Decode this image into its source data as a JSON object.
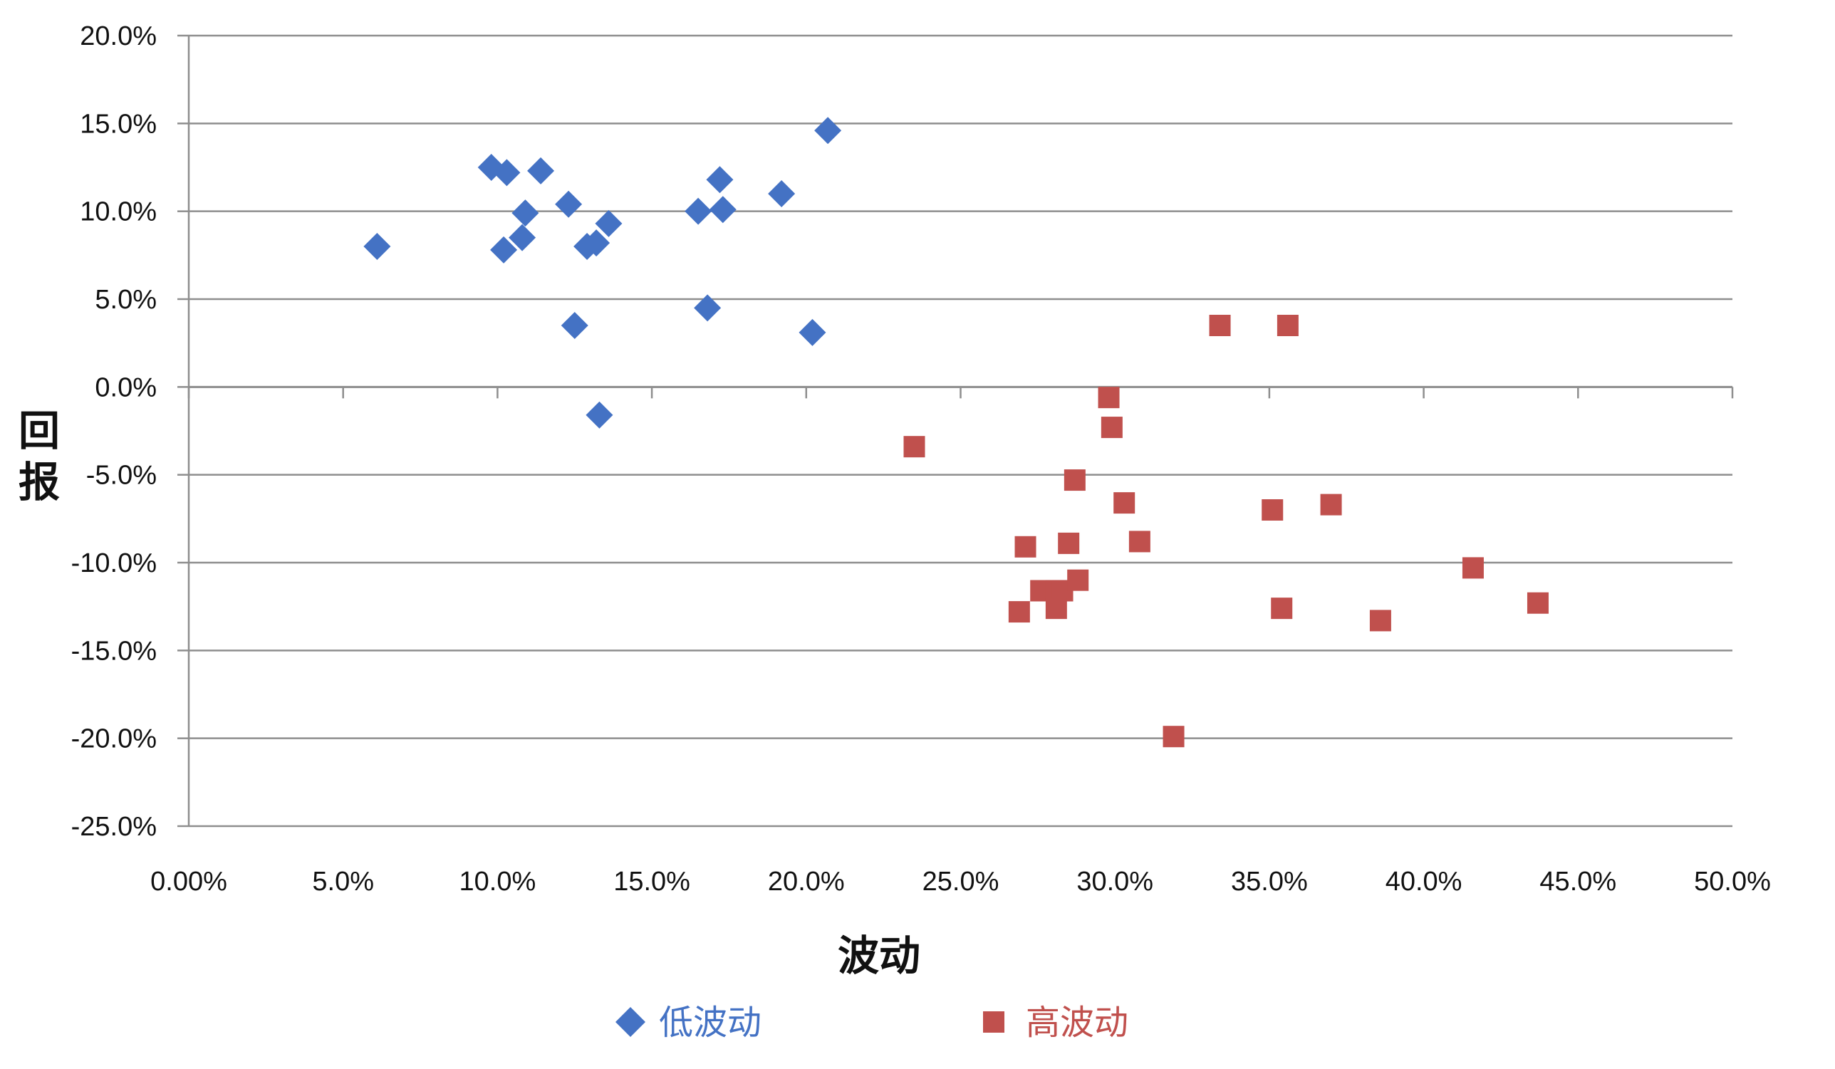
{
  "chart_data": {
    "type": "scatter",
    "title": "",
    "xlabel": "波动",
    "ylabel": "回报",
    "xlim": [
      0.0,
      50.0
    ],
    "ylim": [
      -25.0,
      20.0
    ],
    "x_ticks": [
      0,
      5,
      10,
      15,
      20,
      25,
      30,
      35,
      40,
      45,
      50
    ],
    "x_tick_labels": [
      "0.00%",
      "5.0%",
      "10.0%",
      "15.0%",
      "20.0%",
      "25.0%",
      "30.0%",
      "35.0%",
      "40.0%",
      "45.0%",
      "50.0%"
    ],
    "y_ticks": [
      20,
      15,
      10,
      5,
      0,
      -5,
      -10,
      -15,
      -20,
      -25
    ],
    "y_tick_labels": [
      "20.0%",
      "15.0%",
      "10.0%",
      "5.0%",
      "0.0%",
      "-5.0%",
      "-10.0%",
      "-15.0%",
      "-20.0%",
      "-25.0%"
    ],
    "grid": "horizontal",
    "legend_position": "bottom",
    "series": [
      {
        "name": "低波动",
        "marker": "diamond",
        "color": "#4472C4",
        "points": [
          [
            6.1,
            8.0
          ],
          [
            9.8,
            12.5
          ],
          [
            10.3,
            12.2
          ],
          [
            11.4,
            12.3
          ],
          [
            10.9,
            9.9
          ],
          [
            10.2,
            7.8
          ],
          [
            10.8,
            8.5
          ],
          [
            12.3,
            10.4
          ],
          [
            12.9,
            8.0
          ],
          [
            13.2,
            8.2
          ],
          [
            13.6,
            9.3
          ],
          [
            12.5,
            3.5
          ],
          [
            13.3,
            -1.6
          ],
          [
            16.5,
            10.0
          ],
          [
            17.2,
            11.8
          ],
          [
            17.3,
            10.1
          ],
          [
            16.8,
            4.5
          ],
          [
            19.2,
            11.0
          ],
          [
            20.2,
            3.1
          ],
          [
            20.7,
            14.6
          ]
        ]
      },
      {
        "name": "高波动",
        "marker": "square",
        "color": "#C0504D",
        "points": [
          [
            23.5,
            -3.4
          ],
          [
            26.9,
            -12.8
          ],
          [
            27.1,
            -9.1
          ],
          [
            27.6,
            -11.6
          ],
          [
            28.1,
            -11.6
          ],
          [
            28.3,
            -11.6
          ],
          [
            28.1,
            -12.6
          ],
          [
            28.5,
            -8.9
          ],
          [
            28.8,
            -11.0
          ],
          [
            28.7,
            -5.3
          ],
          [
            29.8,
            -0.6
          ],
          [
            29.9,
            -2.3
          ],
          [
            30.3,
            -6.6
          ],
          [
            30.8,
            -8.8
          ],
          [
            31.9,
            -19.9
          ],
          [
            33.4,
            3.5
          ],
          [
            35.1,
            -7.0
          ],
          [
            35.6,
            3.5
          ],
          [
            35.4,
            -12.6
          ],
          [
            37.0,
            -6.7
          ],
          [
            38.6,
            -13.3
          ],
          [
            41.6,
            -10.3
          ],
          [
            43.7,
            -12.3
          ]
        ]
      }
    ]
  }
}
